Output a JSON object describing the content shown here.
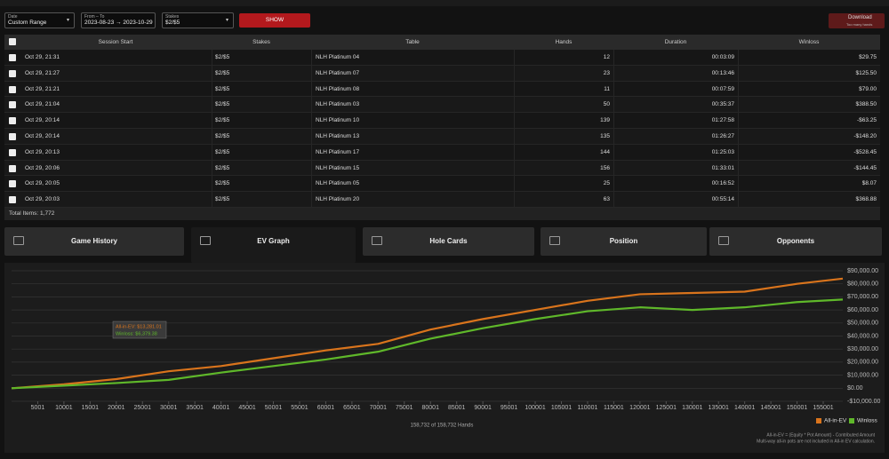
{
  "filters": {
    "date": {
      "label": "Date",
      "value": "Custom Range"
    },
    "range": {
      "label": "From – To",
      "value": "2023-08-23 → 2023-10-29"
    },
    "stakes": {
      "label": "Stakes",
      "value": "$2/$5"
    },
    "show": "SHOW",
    "download": {
      "title": "Download",
      "note": "Too many hands"
    }
  },
  "table": {
    "headers": [
      "Session Start",
      "Stakes",
      "Table",
      "Hands",
      "Duration",
      "Winloss"
    ],
    "rows": [
      [
        "Oct 29, 21:31",
        "$2/$5",
        "NLH Platinum 04",
        12,
        "00:03:09",
        "$29.75"
      ],
      [
        "Oct 29, 21:27",
        "$2/$5",
        "NLH Platinum 07",
        23,
        "00:13:46",
        "$125.50"
      ],
      [
        "Oct 29, 21:21",
        "$2/$5",
        "NLH Platinum 08",
        11,
        "00:07:59",
        "$79.00"
      ],
      [
        "Oct 29, 21:04",
        "$2/$5",
        "NLH Platinum 03",
        50,
        "00:35:37",
        "$388.50"
      ],
      [
        "Oct 29, 20:14",
        "$2/$5",
        "NLH Platinum 10",
        139,
        "01:27:58",
        "-$63.25"
      ],
      [
        "Oct 29, 20:14",
        "$2/$5",
        "NLH Platinum 13",
        135,
        "01:26:27",
        "-$148.20"
      ],
      [
        "Oct 29, 20:13",
        "$2/$5",
        "NLH Platinum 17",
        144,
        "01:25:03",
        "-$528.45"
      ],
      [
        "Oct 29, 20:06",
        "$2/$5",
        "NLH Platinum 15",
        156,
        "01:33:01",
        "-$144.45"
      ],
      [
        "Oct 29, 20:05",
        "$2/$5",
        "NLH Platinum 05",
        25,
        "00:16:52",
        "$8.07"
      ],
      [
        "Oct 29, 20:03",
        "$2/$5",
        "NLH Platinum 20",
        63,
        "00:55:14",
        "$368.88"
      ]
    ],
    "total": "Total Items: 1,772"
  },
  "tabs": [
    "Game History",
    "EV Graph",
    "Hole Cards",
    "Position",
    "Opponents"
  ],
  "chart_data": {
    "type": "line",
    "x": [
      1,
      10000,
      20000,
      30000,
      40000,
      50000,
      60000,
      70000,
      80000,
      90000,
      100000,
      110000,
      120000,
      130000,
      140000,
      150000,
      158732
    ],
    "series": [
      {
        "name": "All-in-EV",
        "color": "#d9741c",
        "values": [
          0,
          3000,
          7000,
          13000,
          17000,
          23000,
          29000,
          34000,
          45000,
          53000,
          60000,
          67000,
          72000,
          73000,
          74000,
          80000,
          84000
        ]
      },
      {
        "name": "Winloss",
        "color": "#5fb82a",
        "values": [
          0,
          2000,
          4000,
          6400,
          12000,
          17000,
          22000,
          28000,
          38000,
          46000,
          53000,
          59000,
          62000,
          60000,
          62000,
          66000,
          68000
        ]
      }
    ],
    "xlim": [
      1,
      158732
    ],
    "ylim": [
      -10000,
      90000
    ],
    "xticks": [
      5001,
      10001,
      15001,
      20001,
      25001,
      30001,
      35001,
      40001,
      45001,
      50001,
      55001,
      60001,
      65001,
      70001,
      75001,
      80001,
      85001,
      90001,
      95001,
      100001,
      105001,
      110001,
      115001,
      120001,
      125001,
      130001,
      135001,
      140001,
      145001,
      150001,
      155001
    ],
    "yticks": [
      {
        "value": 90000,
        "label": "$90,000.00"
      },
      {
        "value": 80000,
        "label": "$80,000.00"
      },
      {
        "value": 70000,
        "label": "$70,000.00"
      },
      {
        "value": 60000,
        "label": "$60,000.00"
      },
      {
        "value": 50000,
        "label": "$50,000.00"
      },
      {
        "value": 40000,
        "label": "$40,000.00"
      },
      {
        "value": 30000,
        "label": "$30,000.00"
      },
      {
        "value": 20000,
        "label": "$20,000.00"
      },
      {
        "value": 10000,
        "label": "$10,000.00"
      },
      {
        "value": 0,
        "label": "$0.00"
      },
      {
        "value": -10000,
        "label": "-$10,000.00"
      }
    ],
    "tooltip": {
      "ev": "All-in-EV: $13,281.01",
      "winloss": "Winloss: $6,379.38"
    },
    "hands_label": "158,732 of 158,732 Hands",
    "notes": [
      "All-in-EV = (Equity * Pot Amount) - Contributed Amount",
      "Multi-way all-in pots are not included in All-in EV calculation."
    ]
  }
}
